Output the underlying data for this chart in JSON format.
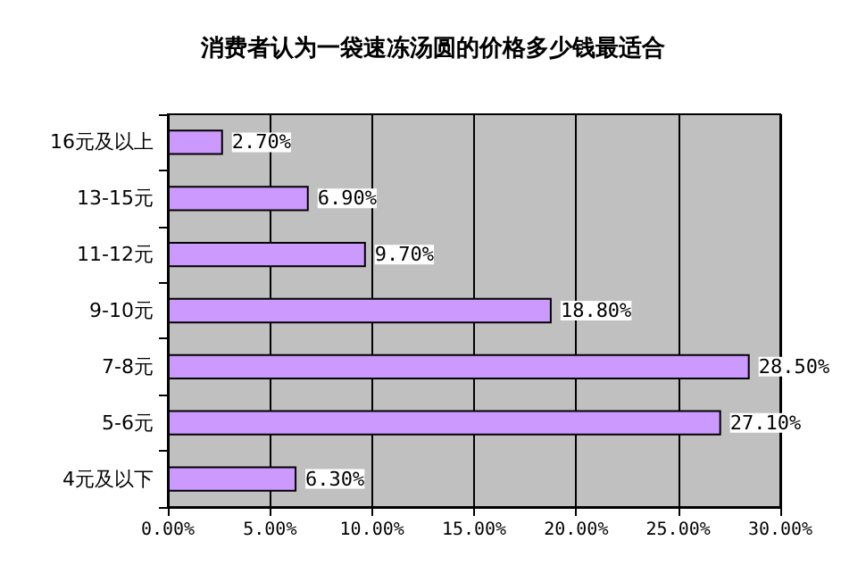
{
  "chart_data": {
    "type": "bar",
    "orientation": "horizontal",
    "title": "消费者认为一袋速冻汤圆的价格多少钱最适合",
    "categories": [
      "16元及以上",
      "13-15元",
      "11-12元",
      "9-10元",
      "7-8元",
      "5-6元",
      "4元及以下"
    ],
    "values": [
      2.7,
      6.9,
      9.7,
      18.8,
      28.5,
      27.1,
      6.3
    ],
    "value_labels": [
      "2.70%",
      "6.90%",
      "9.70%",
      "18.80%",
      "28.50%",
      "27.10%",
      "6.30%"
    ],
    "color": "#cc99ff",
    "xlim": [
      0,
      30
    ],
    "xticks": [
      {
        "value": 0,
        "label": "0.00%"
      },
      {
        "value": 5,
        "label": "5.00%"
      },
      {
        "value": 10,
        "label": "10.00%"
      },
      {
        "value": 15,
        "label": "15.00%"
      },
      {
        "value": 20,
        "label": "20.00%"
      },
      {
        "value": 25,
        "label": "25.00%"
      },
      {
        "value": 30,
        "label": "30.00%"
      }
    ],
    "grid": "x"
  }
}
